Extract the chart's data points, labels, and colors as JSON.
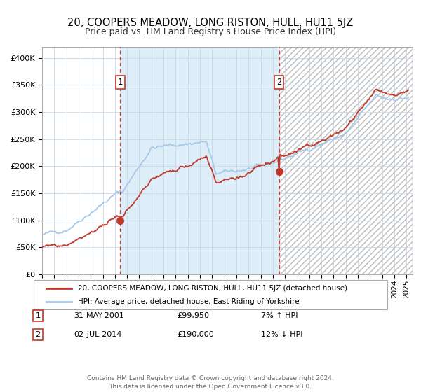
{
  "title": "20, COOPERS MEADOW, LONG RISTON, HULL, HU11 5JZ",
  "subtitle": "Price paid vs. HM Land Registry's House Price Index (HPI)",
  "sale1_date_label": "31-MAY-2001",
  "sale1_price": 99950,
  "sale1_year": 2001.42,
  "sale2_date_label": "02-JUL-2014",
  "sale2_price": 190000,
  "sale2_year": 2014.5,
  "legend_property": "20, COOPERS MEADOW, LONG RISTON, HULL, HU11 5JZ (detached house)",
  "legend_hpi": "HPI: Average price, detached house, East Riding of Yorkshire",
  "footer1": "Contains HM Land Registry data © Crown copyright and database right 2024.",
  "footer2": "This data is licensed under the Open Government Licence v3.0.",
  "table1_date": "31-MAY-2001",
  "table1_price": "£99,950",
  "table1_pct": "7% ↑ HPI",
  "table2_date": "02-JUL-2014",
  "table2_price": "£190,000",
  "table2_pct": "12% ↓ HPI",
  "hpi_color": "#a8c8e8",
  "property_color": "#c0392b",
  "span_color": "#ddeef8",
  "grid_color": "#c8d8e8",
  "ylim": [
    0,
    420000
  ],
  "xlim_start": 1995.0,
  "xlim_end": 2025.5
}
